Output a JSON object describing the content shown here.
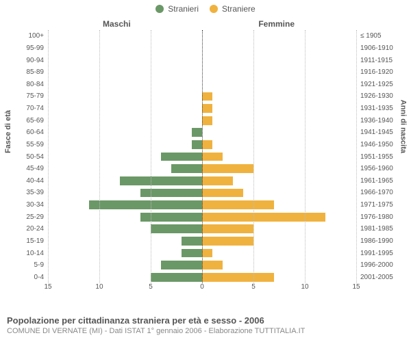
{
  "legend": {
    "male": {
      "label": "Stranieri",
      "color": "#6b9867"
    },
    "female": {
      "label": "Straniere",
      "color": "#f0b23e"
    }
  },
  "headings": {
    "male": "Maschi",
    "female": "Femmine"
  },
  "axis_titles": {
    "left": "Fasce di età",
    "right": "Anni di nascita"
  },
  "x_axis": {
    "min": -15,
    "max": 15,
    "ticks": [
      -15,
      -10,
      -5,
      0,
      5,
      10,
      15
    ],
    "tick_labels": [
      "15",
      "10",
      "5",
      "0",
      "5",
      "10",
      "15"
    ],
    "grid_color": "#bbbbbb",
    "center_color": "#333333"
  },
  "bar_style": {
    "height_pct": 72
  },
  "background_color": "#ffffff",
  "rows": [
    {
      "age": "100+",
      "male": 0,
      "female": 0,
      "birth": "≤ 1905"
    },
    {
      "age": "95-99",
      "male": 0,
      "female": 0,
      "birth": "1906-1910"
    },
    {
      "age": "90-94",
      "male": 0,
      "female": 0,
      "birth": "1911-1915"
    },
    {
      "age": "85-89",
      "male": 0,
      "female": 0,
      "birth": "1916-1920"
    },
    {
      "age": "80-84",
      "male": 0,
      "female": 0,
      "birth": "1921-1925"
    },
    {
      "age": "75-79",
      "male": 0,
      "female": 1,
      "birth": "1926-1930"
    },
    {
      "age": "70-74",
      "male": 0,
      "female": 1,
      "birth": "1931-1935"
    },
    {
      "age": "65-69",
      "male": 0,
      "female": 1,
      "birth": "1936-1940"
    },
    {
      "age": "60-64",
      "male": 1,
      "female": 0,
      "birth": "1941-1945"
    },
    {
      "age": "55-59",
      "male": 1,
      "female": 1,
      "birth": "1946-1950"
    },
    {
      "age": "50-54",
      "male": 4,
      "female": 2,
      "birth": "1951-1955"
    },
    {
      "age": "45-49",
      "male": 3,
      "female": 5,
      "birth": "1956-1960"
    },
    {
      "age": "40-44",
      "male": 8,
      "female": 3,
      "birth": "1961-1965"
    },
    {
      "age": "35-39",
      "male": 6,
      "female": 4,
      "birth": "1966-1970"
    },
    {
      "age": "30-34",
      "male": 11,
      "female": 7,
      "birth": "1971-1975"
    },
    {
      "age": "25-29",
      "male": 6,
      "female": 12,
      "birth": "1976-1980"
    },
    {
      "age": "20-24",
      "male": 5,
      "female": 5,
      "birth": "1981-1985"
    },
    {
      "age": "15-19",
      "male": 2,
      "female": 5,
      "birth": "1986-1990"
    },
    {
      "age": "10-14",
      "male": 2,
      "female": 1,
      "birth": "1991-1995"
    },
    {
      "age": "5-9",
      "male": 4,
      "female": 2,
      "birth": "1996-2000"
    },
    {
      "age": "0-4",
      "male": 5,
      "female": 7,
      "birth": "2001-2005"
    }
  ],
  "caption": {
    "title": "Popolazione per cittadinanza straniera per età e sesso - 2006",
    "subtitle": "COMUNE DI VERNATE (MI) - Dati ISTAT 1° gennaio 2006 - Elaborazione TUTTITALIA.IT"
  }
}
